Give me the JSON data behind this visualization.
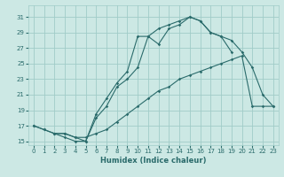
{
  "xlabel": "Humidex (Indice chaleur)",
  "background_color": "#cce8e4",
  "grid_color": "#a0ccc8",
  "line_color": "#2a6b6b",
  "xlim": [
    -0.5,
    23.5
  ],
  "ylim": [
    14.5,
    32.5
  ],
  "xticks": [
    0,
    1,
    2,
    3,
    4,
    5,
    6,
    7,
    8,
    9,
    10,
    11,
    12,
    13,
    14,
    15,
    16,
    17,
    18,
    19,
    20,
    21,
    22,
    23
  ],
  "yticks": [
    15,
    17,
    19,
    21,
    23,
    25,
    27,
    29,
    31
  ],
  "line1_x": [
    0,
    1,
    2,
    3,
    4,
    5,
    6,
    7,
    8,
    9,
    10,
    11,
    12,
    13,
    14,
    15,
    16,
    17,
    18,
    19,
    20,
    21,
    22,
    23
  ],
  "line1_y": [
    17,
    16.5,
    16,
    16,
    15.5,
    15.5,
    16,
    16.5,
    17.5,
    18.5,
    19.5,
    20.5,
    21.5,
    22,
    23,
    23.5,
    24,
    24.5,
    25,
    25.5,
    26,
    19.5,
    19.5,
    19.5
  ],
  "line2_x": [
    0,
    1,
    2,
    3,
    4,
    5,
    6,
    7,
    8,
    9,
    10,
    11,
    12,
    13,
    14,
    15,
    16,
    17,
    18,
    19,
    20
  ],
  "line2_y": [
    17,
    16.5,
    16,
    15.5,
    15,
    15,
    18,
    19.5,
    22,
    23,
    24.5,
    28.5,
    27.5,
    29.5,
    30,
    31,
    30.5,
    29,
    28.5,
    26.5,
    null
  ],
  "line3_x": [
    2,
    3,
    4,
    5,
    6,
    7,
    8,
    9,
    10,
    11,
    12,
    13,
    14,
    15,
    16,
    17,
    18,
    19,
    20,
    21,
    22,
    23
  ],
  "line3_y": [
    16,
    16,
    15.5,
    15,
    18.5,
    20.5,
    22.5,
    24,
    28.5,
    28.5,
    29.5,
    30,
    30.5,
    31,
    30.5,
    29,
    28.5,
    28,
    26.5,
    24.5,
    21,
    19.5
  ]
}
